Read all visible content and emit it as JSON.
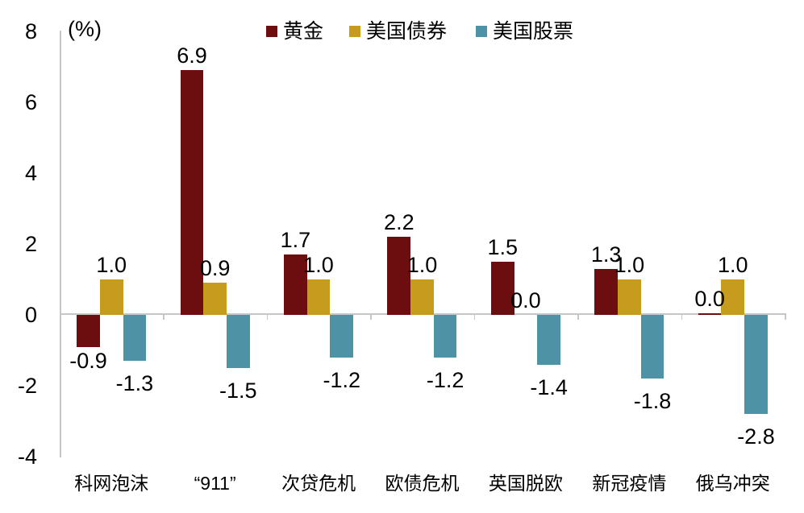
{
  "chart_data": {
    "type": "bar",
    "title": "",
    "xlabel": "",
    "ylabel": "(%)",
    "ylim": [
      -4,
      8
    ],
    "yticks": [
      8,
      6,
      4,
      2,
      0,
      -2,
      -4
    ],
    "grid": false,
    "legend_position": "top-center",
    "categories": [
      "科网泡沫",
      "“911”",
      "次贷危机",
      "欧债危机",
      "英国脱欧",
      "新冠疫情",
      "俄乌冲突"
    ],
    "series": [
      {
        "name": "黄金",
        "color": "#6C0E10",
        "values": [
          -0.9,
          6.9,
          1.7,
          2.2,
          1.5,
          1.3,
          0.05
        ],
        "labels": [
          "-0.9",
          "6.9",
          "1.7",
          "2.2",
          "1.5",
          "1.3",
          "0.0"
        ]
      },
      {
        "name": "美国债券",
        "color": "#C79C1E",
        "values": [
          1.0,
          0.9,
          1.0,
          1.0,
          0.0,
          1.0,
          1.0
        ],
        "labels": [
          "1.0",
          "0.9",
          "1.0",
          "1.0",
          "0.0",
          "1.0",
          "1.0"
        ]
      },
      {
        "name": "美国股票",
        "color": "#4D93A5",
        "values": [
          -1.3,
          -1.5,
          -1.2,
          -1.2,
          -1.4,
          -1.8,
          -2.8
        ],
        "labels": [
          "-1.3",
          "-1.5",
          "-1.2",
          "-1.2",
          "-1.4",
          "-1.8",
          "-2.8"
        ]
      }
    ]
  },
  "colors": {
    "axis": "#C6C6C6",
    "text": "#000000",
    "background": "#FFFFFF"
  }
}
